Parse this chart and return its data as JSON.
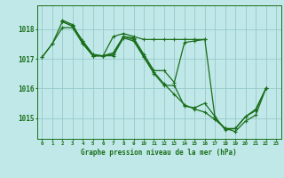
{
  "xlabel": "Graphe pression niveau de la mer (hPa)",
  "bg_color": "#c0e8e8",
  "grid_color": "#98c8c8",
  "line_color": "#1a6e1a",
  "ylim": [
    1014.3,
    1018.8
  ],
  "xlim": [
    -0.5,
    23.5
  ],
  "yticks": [
    1015,
    1016,
    1017,
    1018
  ],
  "xticks": [
    0,
    1,
    2,
    3,
    4,
    5,
    6,
    7,
    8,
    9,
    10,
    11,
    12,
    13,
    14,
    15,
    16,
    17,
    18,
    19,
    20,
    21,
    22,
    23
  ],
  "series": [
    {
      "x": [
        0,
        1,
        2,
        3,
        4,
        5,
        6,
        7,
        8,
        9,
        10,
        11,
        12,
        13,
        14,
        15,
        16,
        17,
        18,
        19,
        20,
        21,
        22
      ],
      "y": [
        1017.05,
        1017.5,
        1018.25,
        1018.1,
        1017.6,
        1017.15,
        1017.1,
        1017.15,
        1017.75,
        1017.65,
        1017.1,
        1016.55,
        1016.15,
        1015.8,
        1015.45,
        1015.3,
        1015.2,
        1014.95,
        1014.65,
        1014.55,
        1014.9,
        1015.1,
        1016.0
      ]
    },
    {
      "x": [
        2,
        3,
        4,
        5,
        6,
        7,
        8,
        9,
        10,
        11,
        12,
        13,
        14,
        15,
        16
      ],
      "y": [
        1018.25,
        1018.1,
        1017.6,
        1017.1,
        1017.1,
        1017.75,
        1017.85,
        1017.75,
        1017.65,
        1017.65,
        1017.65,
        1017.65,
        1017.65,
        1017.65,
        1017.65
      ]
    },
    {
      "x": [
        0,
        1,
        2,
        3,
        4,
        5,
        6,
        7,
        8,
        9,
        10,
        11,
        12,
        13,
        14,
        15,
        16,
        17,
        18,
        19,
        20,
        21,
        22
      ],
      "y": [
        1017.05,
        1017.5,
        1018.05,
        1018.05,
        1017.5,
        1017.1,
        1017.1,
        1017.1,
        1017.7,
        1017.6,
        1017.05,
        1016.5,
        1016.1,
        1016.1,
        1015.4,
        1015.35,
        1015.5,
        1015.05,
        1014.6,
        1014.65,
        1015.05,
        1015.25,
        1016.0
      ]
    },
    {
      "x": [
        2,
        3,
        4,
        5,
        6,
        7,
        8,
        9,
        10,
        11,
        12,
        13,
        14,
        15,
        16,
        17,
        18,
        19,
        20,
        21,
        22
      ],
      "y": [
        1018.3,
        1018.15,
        1017.55,
        1017.1,
        1017.1,
        1017.2,
        1017.75,
        1017.7,
        1017.15,
        1016.6,
        1016.6,
        1016.2,
        1017.55,
        1017.6,
        1017.65,
        1015.0,
        1014.65,
        1014.65,
        1015.05,
        1015.3,
        1016.0
      ]
    }
  ]
}
